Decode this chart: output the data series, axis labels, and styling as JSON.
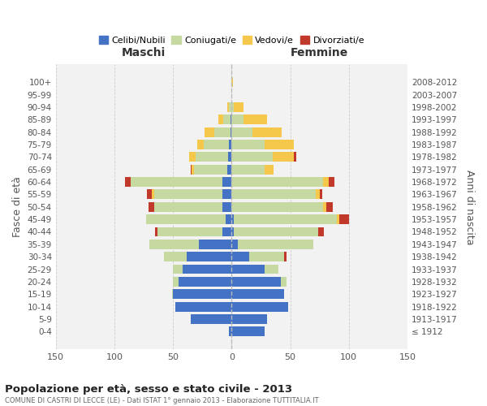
{
  "age_groups": [
    "100+",
    "95-99",
    "90-94",
    "85-89",
    "80-84",
    "75-79",
    "70-74",
    "65-69",
    "60-64",
    "55-59",
    "50-54",
    "45-49",
    "40-44",
    "35-39",
    "30-34",
    "25-29",
    "20-24",
    "15-19",
    "10-14",
    "5-9",
    "0-4"
  ],
  "birth_years": [
    "≤ 1912",
    "1913-1917",
    "1918-1922",
    "1923-1927",
    "1928-1932",
    "1933-1937",
    "1938-1942",
    "1943-1947",
    "1948-1952",
    "1953-1957",
    "1958-1962",
    "1963-1967",
    "1968-1972",
    "1973-1977",
    "1978-1982",
    "1983-1987",
    "1988-1992",
    "1993-1997",
    "1998-2002",
    "2003-2007",
    "2008-2012"
  ],
  "colors": {
    "celibi": "#4472C4",
    "coniugati": "#c5d9a0",
    "vedovi": "#f5c84c",
    "divorziati": "#c0392b"
  },
  "maschi_celibi": [
    0,
    0,
    0,
    1,
    1,
    2,
    3,
    4,
    8,
    8,
    8,
    5,
    8,
    28,
    38,
    42,
    45,
    50,
    48,
    35,
    2
  ],
  "maschi_coniugati": [
    0,
    0,
    2,
    6,
    14,
    22,
    28,
    28,
    78,
    58,
    58,
    68,
    55,
    42,
    20,
    8,
    5,
    1,
    0,
    0,
    0
  ],
  "maschi_vedovi": [
    0,
    0,
    2,
    4,
    8,
    5,
    5,
    2,
    0,
    2,
    0,
    0,
    0,
    0,
    0,
    0,
    0,
    0,
    0,
    0,
    0
  ],
  "maschi_divorziati": [
    0,
    0,
    0,
    0,
    0,
    0,
    0,
    1,
    5,
    4,
    5,
    0,
    2,
    0,
    0,
    0,
    0,
    0,
    0,
    0,
    0
  ],
  "femmine_celibi": [
    0,
    0,
    0,
    0,
    0,
    0,
    0,
    0,
    0,
    0,
    0,
    2,
    2,
    5,
    15,
    28,
    42,
    45,
    48,
    30,
    28
  ],
  "femmine_coniugati": [
    0,
    0,
    2,
    10,
    18,
    28,
    35,
    28,
    78,
    72,
    78,
    88,
    72,
    65,
    30,
    12,
    5,
    0,
    0,
    0,
    0
  ],
  "femmine_vedovi": [
    1,
    0,
    8,
    20,
    25,
    25,
    18,
    8,
    5,
    3,
    3,
    2,
    0,
    0,
    0,
    0,
    0,
    0,
    0,
    0,
    0
  ],
  "femmine_divorziati": [
    0,
    0,
    0,
    0,
    0,
    0,
    2,
    0,
    5,
    2,
    5,
    8,
    5,
    0,
    2,
    0,
    0,
    0,
    0,
    0,
    0
  ],
  "xlim": 150,
  "title": "Popolazione per età, sesso e stato civile - 2013",
  "subtitle": "COMUNE DI CASTRI DI LECCE (LE) - Dati ISTAT 1° gennaio 2013 - Elaborazione TUTTITALIA.IT",
  "ylabel_left": "Fasce di età",
  "ylabel_right": "Anni di nascita",
  "label_maschi": "Maschi",
  "label_femmine": "Femmine",
  "legend_labels": [
    "Celibi/Nubili",
    "Coniugati/e",
    "Vedovi/e",
    "Divorziati/e"
  ],
  "background_color": "#ffffff",
  "plot_bg": "#f2f2f2",
  "bar_height": 0.78
}
